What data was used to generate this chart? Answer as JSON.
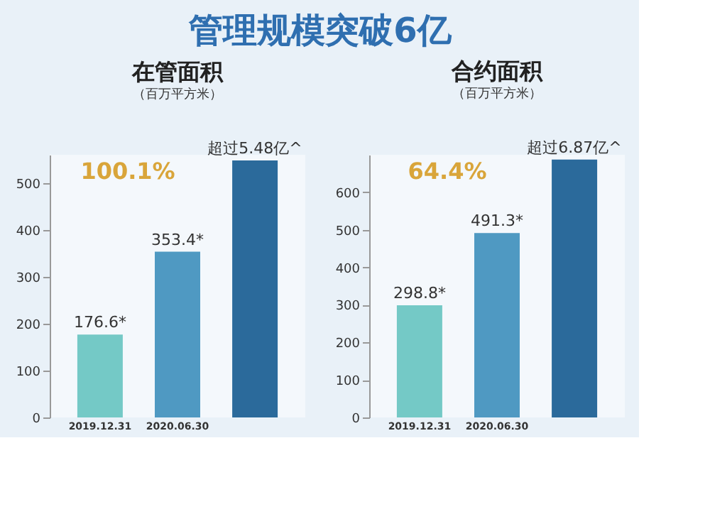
{
  "chart_data": [
    {
      "type": "other",
      "title": "管理规模突破6亿"
    },
    {
      "type": "bar",
      "title": "在管面积",
      "subtitle": "（百万平方米）",
      "categories": [
        "2019.12.31",
        "2020.06.30",
        null
      ],
      "values": [
        176.6,
        353.4,
        548
      ],
      "value_labels": [
        "176.6*",
        "353.4*",
        "超过5.48亿^"
      ],
      "colors": [
        "#74c9c6",
        "#4f99c2",
        "#2b6a9b"
      ],
      "ylim": [
        0,
        560
      ],
      "yticks": [
        0,
        100,
        200,
        300,
        400,
        500
      ],
      "annotations": [
        "100.1%"
      ]
    },
    {
      "type": "bar",
      "title": "合约面积",
      "subtitle": "（百万平方米）",
      "categories": [
        "2019.12.31",
        "2020.06.30",
        null
      ],
      "values": [
        298.8,
        491.3,
        687
      ],
      "value_labels": [
        "298.8*",
        "491.3*",
        "超过6.87亿^"
      ],
      "colors": [
        "#74c9c6",
        "#4f99c2",
        "#2b6a9b"
      ],
      "ylim": [
        0,
        700
      ],
      "yticks": [
        0,
        100,
        200,
        300,
        400,
        500,
        600
      ],
      "annotations": [
        "64.4%"
      ]
    }
  ]
}
